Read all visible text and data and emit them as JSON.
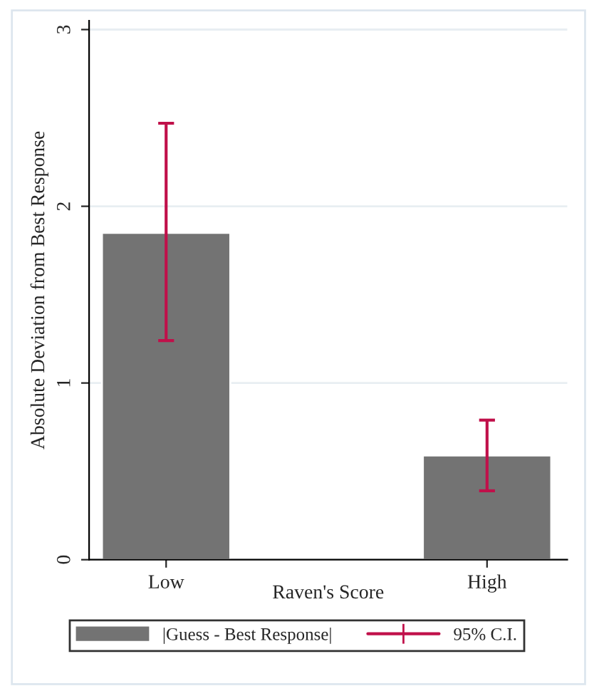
{
  "chart_data": {
    "type": "bar",
    "xlabel": "Raven's Score",
    "ylabel": "Absolute Deviation from Best Response",
    "categories": [
      "Low",
      "High"
    ],
    "series": [
      {
        "name": "|Guess - Best Response|",
        "color": "#737373",
        "values": [
          1.85,
          0.59
        ],
        "errors": [
          [
            1.24,
            2.47
          ],
          [
            0.39,
            0.79
          ]
        ]
      }
    ],
    "annotations": [
      "95% C.I."
    ],
    "ylim": [
      0,
      3.05
    ],
    "yticks": [
      0,
      1,
      2,
      3
    ],
    "grid": "y",
    "legend": "bottom"
  }
}
